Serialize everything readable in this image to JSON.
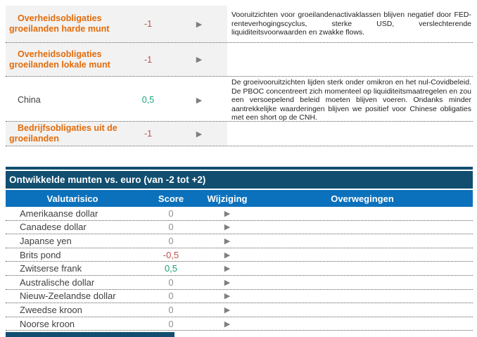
{
  "colors": {
    "section_header_bg": "#114e70",
    "column_header_bg": "#0c71bc",
    "asset_label_orange": "#e36c0a",
    "negative_score": "#c0504d",
    "positive_score": "#16a178",
    "neutral_score": "#909090",
    "shaded_row_bg": "#f2f2f2"
  },
  "icons": {
    "right_arrow": "▶"
  },
  "em_bonds": {
    "rows": [
      {
        "label": "Overheidsobligaties groeilanden harde munt",
        "score": "-1",
        "tone": "negative",
        "shaded": true,
        "considerations": "Vooruitzichten voor groeilandenactivaklassen blijven negatief door FED-renteverhogingscyclus, sterke USD, verslechterende liquiditeitsvoorwaarden en zwakke flows."
      },
      {
        "label": "Overheidsobligaties groeilanden lokale munt",
        "score": "-1",
        "tone": "negative",
        "shaded": true,
        "considerations": ""
      },
      {
        "label": "China",
        "score": "0,5",
        "tone": "positive",
        "shaded": false,
        "considerations": "De groeivooruitzichten lijden sterk onder omikron en het nul-Covidbeleid. De PBOC concentreert zich momenteel op liquiditeitsmaatregelen en zou een versoepelend beleid moeten blijven voeren. Ondanks minder aantrekkelijke waarderingen blijven we positief voor Chinese obligaties met een short op de CNH."
      },
      {
        "label": "Bedrijfsobligaties uit de groeilanden",
        "score": "-1",
        "tone": "negative",
        "shaded": true,
        "considerations": ""
      }
    ]
  },
  "currency_section": {
    "title": "Ontwikkelde munten vs. euro (van -2 tot +2)",
    "columns": {
      "currency": "Valutarisico",
      "score": "Score",
      "change": "Wijziging",
      "considerations": "Overwegingen"
    },
    "rows": [
      {
        "name": "Amerikaanse dollar",
        "score": "0",
        "tone": "neutral"
      },
      {
        "name": "Canadese dollar",
        "score": "0",
        "tone": "neutral"
      },
      {
        "name": "Japanse yen",
        "score": "0",
        "tone": "neutral"
      },
      {
        "name": "Brits pond",
        "score": "-0,5",
        "tone": "negative"
      },
      {
        "name": "Zwitserse frank",
        "score": "0,5",
        "tone": "positive"
      },
      {
        "name": "Australische dollar",
        "score": "0",
        "tone": "neutral"
      },
      {
        "name": "Nieuw-Zeelandse dollar",
        "score": "0",
        "tone": "neutral"
      },
      {
        "name": "Zweedse kroon",
        "score": "0",
        "tone": "neutral"
      },
      {
        "name": "Noorse kroon",
        "score": "0",
        "tone": "neutral"
      }
    ]
  }
}
